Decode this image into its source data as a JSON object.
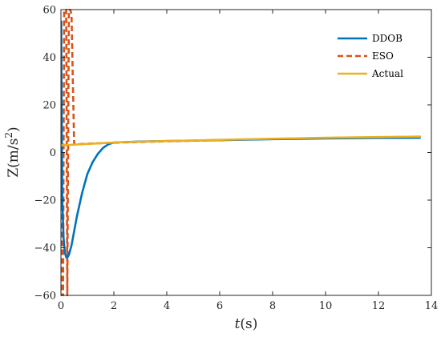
{
  "chart_data": {
    "type": "line",
    "xlabel": {
      "italic": "t",
      "rest": "(s)"
    },
    "ylabel": {
      "base": "Z(m/s",
      "sup": "2",
      "close": ")"
    },
    "xlim": [
      0,
      14
    ],
    "ylim": [
      -60,
      60
    ],
    "xticks": [
      0,
      2,
      4,
      6,
      8,
      10,
      12,
      14
    ],
    "yticks": [
      -60,
      -40,
      -20,
      0,
      20,
      40,
      60
    ],
    "xtick_labels": [
      "0",
      "2",
      "4",
      "6",
      "8",
      "10",
      "12",
      "14"
    ],
    "ytick_labels": [
      "−60",
      "−40",
      "−20",
      "0",
      "20",
      "40",
      "60"
    ],
    "grid": false,
    "legend_position": "top-right",
    "series": [
      {
        "name": "DDOB",
        "color": "#0072BD",
        "dash": "solid",
        "x": [
          0,
          0.01,
          0.02,
          0.05,
          0.1,
          0.15,
          0.2,
          0.25,
          0.3,
          0.4,
          0.5,
          0.6,
          0.8,
          1.0,
          1.2,
          1.4,
          1.6,
          1.8,
          2.0,
          2.5,
          3,
          4,
          6,
          8,
          10,
          12,
          13.6
        ],
        "y": [
          0,
          55,
          30,
          -20,
          -36,
          -42,
          -44,
          -44,
          -43,
          -39,
          -33,
          -27,
          -17,
          -9,
          -4,
          -0.5,
          2,
          3.5,
          4.2,
          4.4,
          4.6,
          4.8,
          5.2,
          5.6,
          5.9,
          6.1,
          6.2
        ]
      },
      {
        "name": "ESO",
        "color": "#D95319",
        "dash": "dashed",
        "x": [
          0,
          0.02,
          0.04,
          0.08,
          0.12,
          0.16,
          0.2,
          0.24,
          0.3,
          0.35,
          0.4,
          0.45,
          0.5,
          0.6,
          0.8,
          1.0,
          1.5,
          2.0,
          3,
          4,
          6,
          8,
          10,
          12,
          13.6
        ],
        "y": [
          0,
          -60,
          -60,
          -60,
          60,
          60,
          60,
          -60,
          60,
          60,
          58,
          30,
          3.5,
          3.5,
          3.6,
          3.7,
          3.9,
          4.1,
          4.4,
          4.7,
          5.2,
          5.7,
          6.1,
          6.4,
          6.6
        ]
      },
      {
        "name": "Actual",
        "color": "#EDB120",
        "dash": "solid",
        "x": [
          0,
          0.5,
          1.0,
          1.5,
          2,
          3,
          4,
          6,
          8,
          10,
          12,
          13.6
        ],
        "y": [
          3,
          3.3,
          3.6,
          3.9,
          4.2,
          4.5,
          4.8,
          5.3,
          5.8,
          6.2,
          6.5,
          6.7
        ]
      }
    ]
  }
}
